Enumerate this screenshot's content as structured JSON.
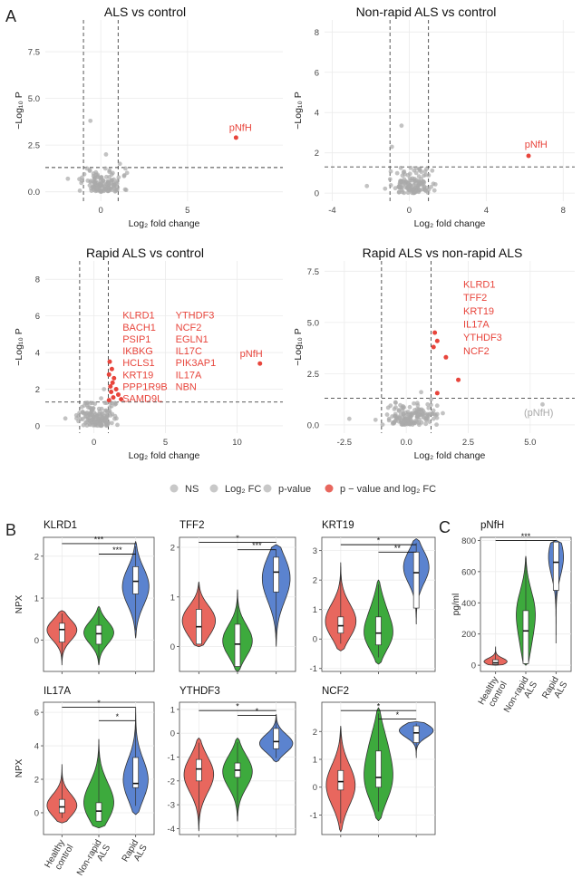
{
  "panel_letters": {
    "a": "A",
    "b": "B",
    "c": "C"
  },
  "colors": {
    "sig": "#e8453c",
    "ns": "#a9a9a9",
    "grid": "#ebebeb",
    "axis": "#333333",
    "healthy": "#e8675e",
    "nonrapid": "#3daa3d",
    "rapid": "#5b83cf"
  },
  "legend": {
    "ns": "NS",
    "log2fc": "Log₂ FC",
    "pvalue": "p-value",
    "both": "p − value and log₂ FC"
  },
  "chart_data": [
    {
      "type": "scatter",
      "id": "volcano-1",
      "title": "ALS vs control",
      "xlabel": "Log₂ fold change",
      "ylabel": "−Log₁₀ P",
      "xlim": [
        -3.2,
        10.5
      ],
      "ylim": [
        -0.5,
        9.2
      ],
      "xticks": [
        0,
        5
      ],
      "yticks": [
        0,
        2.5,
        5.0,
        7.5
      ],
      "ytick_labels": [
        "0.0",
        "2.5",
        "5.0",
        "7.5"
      ],
      "vlines": [
        -1,
        1
      ],
      "hline": 1.3,
      "ns_count": 130,
      "ns_center": [
        0.15,
        0.5
      ],
      "ns_spread": [
        0.55,
        0.45
      ],
      "outliers": [
        [
          -1.9,
          0.7
        ],
        [
          -0.6,
          3.8
        ],
        [
          0.3,
          2.0
        ],
        [
          1.1,
          1.5
        ]
      ],
      "sig_points": [
        {
          "x": 7.8,
          "y": 2.9
        }
      ],
      "labels": [
        {
          "text": "pNfH",
          "x": 7.4,
          "y": 3.25,
          "color": "sig"
        }
      ]
    },
    {
      "type": "scatter",
      "id": "volcano-2",
      "title": "Non-rapid ALS vs control",
      "xlabel": "Log₂ fold change",
      "ylabel": "−Log₁₀ P",
      "xlim": [
        -4.4,
        8.6
      ],
      "ylim": [
        -0.4,
        8.6
      ],
      "xticks": [
        -4,
        0,
        4,
        8
      ],
      "yticks": [
        0,
        2,
        4,
        6,
        8
      ],
      "ytick_labels": [
        "0",
        "2",
        "4",
        "6",
        "8"
      ],
      "vlines": [
        -1,
        1
      ],
      "hline": 1.3,
      "ns_count": 130,
      "ns_center": [
        0.1,
        0.45
      ],
      "ns_spread": [
        0.5,
        0.4
      ],
      "outliers": [
        [
          -2.2,
          0.35
        ],
        [
          -0.9,
          2.3
        ],
        [
          -0.4,
          3.35
        ],
        [
          0.9,
          1.2
        ]
      ],
      "sig_points": [
        {
          "x": 6.2,
          "y": 1.85
        }
      ],
      "labels": [
        {
          "text": "pNfH",
          "x": 6.0,
          "y": 2.25,
          "color": "sig"
        }
      ]
    },
    {
      "type": "scatter",
      "id": "volcano-3",
      "title": "Rapid ALS vs control",
      "xlabel": "Log₂ fold change",
      "ylabel": "−Log₁₀ P",
      "xlim": [
        -3.4,
        13.2
      ],
      "ylim": [
        -0.4,
        9.0
      ],
      "xticks": [
        0,
        5,
        10
      ],
      "yticks": [
        0,
        2,
        4,
        6,
        8
      ],
      "ytick_labels": [
        "0",
        "2",
        "4",
        "6",
        "8"
      ],
      "vlines": [
        -1,
        1
      ],
      "hline": 1.3,
      "ns_count": 150,
      "ns_center": [
        0.2,
        0.5
      ],
      "ns_spread": [
        0.6,
        0.45
      ],
      "outliers": [
        [
          -2.0,
          0.4
        ],
        [
          0.5,
          1.5
        ],
        [
          0.7,
          2.0
        ],
        [
          -0.4,
          1.0
        ]
      ],
      "sig_points": [
        {
          "x": 1.1,
          "y": 3.5
        },
        {
          "x": 1.25,
          "y": 3.1
        },
        {
          "x": 1.05,
          "y": 2.8
        },
        {
          "x": 1.4,
          "y": 2.6
        },
        {
          "x": 1.3,
          "y": 2.35
        },
        {
          "x": 1.15,
          "y": 2.15
        },
        {
          "x": 1.55,
          "y": 2.0
        },
        {
          "x": 1.2,
          "y": 1.85
        },
        {
          "x": 1.7,
          "y": 1.7
        },
        {
          "x": 1.35,
          "y": 1.55
        },
        {
          "x": 1.9,
          "y": 1.45
        },
        {
          "x": 1.05,
          "y": 1.4
        },
        {
          "x": 11.6,
          "y": 3.4
        }
      ],
      "labels": [
        {
          "text": "KLRD1",
          "x": 2.0,
          "y": 5.85,
          "color": "sig"
        },
        {
          "text": "BACH1",
          "x": 2.0,
          "y": 5.2,
          "color": "sig"
        },
        {
          "text": "PSIP1",
          "x": 2.0,
          "y": 4.55,
          "color": "sig"
        },
        {
          "text": "IKBKG",
          "x": 2.0,
          "y": 3.9,
          "color": "sig"
        },
        {
          "text": "HCLS1",
          "x": 2.0,
          "y": 3.25,
          "color": "sig"
        },
        {
          "text": "KRT19",
          "x": 2.0,
          "y": 2.6,
          "color": "sig"
        },
        {
          "text": "PPP1R9B",
          "x": 2.0,
          "y": 1.95,
          "color": "sig"
        },
        {
          "text": "SAMD9L",
          "x": 2.0,
          "y": 1.3,
          "color": "sig"
        },
        {
          "text": "YTHDF3",
          "x": 5.7,
          "y": 5.85,
          "color": "sig"
        },
        {
          "text": "NCF2",
          "x": 5.7,
          "y": 5.2,
          "color": "sig"
        },
        {
          "text": "EGLN1",
          "x": 5.7,
          "y": 4.55,
          "color": "sig"
        },
        {
          "text": "IL17C",
          "x": 5.7,
          "y": 3.9,
          "color": "sig"
        },
        {
          "text": "PIK3AP1",
          "x": 5.7,
          "y": 3.25,
          "color": "sig"
        },
        {
          "text": "IL17A",
          "x": 5.7,
          "y": 2.6,
          "color": "sig"
        },
        {
          "text": "NBN",
          "x": 5.7,
          "y": 1.95,
          "color": "sig"
        },
        {
          "text": "pNfH",
          "x": 10.2,
          "y": 3.75,
          "color": "sig"
        }
      ]
    },
    {
      "type": "scatter",
      "id": "volcano-4",
      "title": "Rapid ALS vs non-rapid ALS",
      "xlabel": "Log₂ fold change",
      "ylabel": "−Log₁₀ P",
      "xlim": [
        -3.3,
        6.8
      ],
      "ylim": [
        -0.4,
        8.0
      ],
      "xticks": [
        -2.5,
        0.0,
        2.5,
        5.0
      ],
      "xtick_labels": [
        "-2.5",
        "0.0",
        "2.5",
        "5.0"
      ],
      "yticks": [
        0,
        2.5,
        5.0,
        7.5
      ],
      "ytick_labels": [
        "0.0",
        "2.5",
        "5.0",
        "7.5"
      ],
      "vlines": [
        -1,
        1
      ],
      "hline": 1.3,
      "ns_count": 150,
      "ns_center": [
        0.15,
        0.5
      ],
      "ns_spread": [
        0.55,
        0.4
      ],
      "outliers": [
        [
          -2.3,
          0.3
        ],
        [
          5.5,
          1.0
        ],
        [
          0.6,
          1.6
        ]
      ],
      "sig_points": [
        {
          "x": 1.15,
          "y": 4.5
        },
        {
          "x": 1.25,
          "y": 4.1
        },
        {
          "x": 1.1,
          "y": 3.8
        },
        {
          "x": 1.6,
          "y": 3.3
        },
        {
          "x": 2.1,
          "y": 2.2
        },
        {
          "x": 1.25,
          "y": 1.55
        }
      ],
      "labels": [
        {
          "text": "KLRD1",
          "x": 2.3,
          "y": 6.7,
          "color": "sig"
        },
        {
          "text": "TFF2",
          "x": 2.3,
          "y": 6.05,
          "color": "sig"
        },
        {
          "text": "KRT19",
          "x": 2.3,
          "y": 5.4,
          "color": "sig"
        },
        {
          "text": "IL17A",
          "x": 2.3,
          "y": 4.75,
          "color": "sig"
        },
        {
          "text": "YTHDF3",
          "x": 2.3,
          "y": 4.1,
          "color": "sig"
        },
        {
          "text": "NCF2",
          "x": 2.3,
          "y": 3.45,
          "color": "sig"
        },
        {
          "text": "(pNfH)",
          "x": 4.75,
          "y": 0.45,
          "color": "ns"
        }
      ]
    },
    {
      "type": "violin",
      "id": "violin-klrd1",
      "title": "KLRD1",
      "ylabel": "NPX",
      "ylim": [
        -0.75,
        2.45
      ],
      "yticks": [
        0,
        1,
        2
      ],
      "ytick_labels": [
        "0",
        "1",
        "2"
      ],
      "groups": [
        {
          "min": -0.6,
          "max": 0.7,
          "q1": -0.05,
          "median": 0.25,
          "q3": 0.4,
          "modes": [
            [
              0.3,
              1
            ]
          ],
          "width": 0.9
        },
        {
          "min": -0.6,
          "max": 0.8,
          "q1": -0.1,
          "median": 0.15,
          "q3": 0.35,
          "modes": [
            [
              0.2,
              1
            ]
          ],
          "width": 0.9
        },
        {
          "min": 0.05,
          "max": 2.35,
          "q1": 1.1,
          "median": 1.4,
          "q3": 1.75,
          "modes": [
            [
              1.3,
              1
            ]
          ],
          "width": 0.8
        }
      ],
      "brackets": [
        {
          "from": 0,
          "to": 2,
          "y": 2.3,
          "label": "***"
        },
        {
          "from": 1,
          "to": 2,
          "y": 2.05,
          "label": "***"
        }
      ]
    },
    {
      "type": "violin",
      "id": "violin-tff2",
      "title": "TFF2",
      "ylabel": "",
      "ylim": [
        -0.5,
        2.2
      ],
      "yticks": [
        0,
        1,
        2
      ],
      "ytick_labels": [
        "0",
        "1",
        "2"
      ],
      "groups": [
        {
          "min": 0.0,
          "max": 1.3,
          "q1": 0.05,
          "median": 0.4,
          "q3": 0.75,
          "modes": [
            [
              0.15,
              0.8
            ],
            [
              0.6,
              1
            ]
          ],
          "width": 0.95
        },
        {
          "min": -0.5,
          "max": 1.15,
          "q1": -0.4,
          "median": 0.05,
          "q3": 0.45,
          "modes": [
            [
              0.05,
              1
            ]
          ],
          "width": 0.85
        },
        {
          "min": 0.0,
          "max": 2.05,
          "q1": 1.1,
          "median": 1.5,
          "q3": 1.8,
          "modes": [
            [
              1.2,
              0.7
            ],
            [
              1.75,
              1
            ]
          ],
          "width": 0.8
        }
      ],
      "brackets": [
        {
          "from": 0,
          "to": 2,
          "y": 2.1,
          "label": "*"
        },
        {
          "from": 1,
          "to": 2,
          "y": 1.95,
          "label": "***"
        }
      ]
    },
    {
      "type": "violin",
      "id": "violin-krt19",
      "title": "KRT19",
      "ylabel": "",
      "ylim": [
        -1.1,
        3.45
      ],
      "yticks": [
        -1,
        0,
        1,
        2,
        3
      ],
      "ytick_labels": [
        "-1",
        "0",
        "1",
        "2",
        "3"
      ],
      "groups": [
        {
          "min": -0.4,
          "max": 2.6,
          "q1": 0.2,
          "median": 0.45,
          "q3": 0.75,
          "modes": [
            [
              0.45,
              1
            ]
          ],
          "width": 0.9
        },
        {
          "min": -0.85,
          "max": 2.0,
          "q1": -0.2,
          "median": 0.2,
          "q3": 0.75,
          "modes": [
            [
              0.0,
              1
            ],
            [
              1.2,
              0.4
            ]
          ],
          "width": 0.85
        },
        {
          "min": 0.5,
          "max": 3.4,
          "q1": 1.05,
          "median": 2.25,
          "q3": 2.95,
          "modes": [
            [
              2.6,
              1
            ]
          ],
          "width": 0.75
        }
      ],
      "brackets": [
        {
          "from": 0,
          "to": 2,
          "y": 3.2,
          "label": "*"
        },
        {
          "from": 1,
          "to": 2,
          "y": 2.95,
          "label": "**"
        }
      ]
    },
    {
      "type": "violin",
      "id": "violin-il17a",
      "title": "IL17A",
      "ylabel": "NPX",
      "ylim": [
        -1.3,
        6.6
      ],
      "yticks": [
        0,
        2,
        4,
        6
      ],
      "ytick_labels": [
        "0",
        "2",
        "4",
        "6"
      ],
      "groups": [
        {
          "min": -0.6,
          "max": 2.9,
          "q1": 0.0,
          "median": 0.35,
          "q3": 0.8,
          "modes": [
            [
              0.2,
              1
            ]
          ],
          "width": 0.9
        },
        {
          "min": -0.9,
          "max": 4.4,
          "q1": -0.5,
          "median": 0.1,
          "q3": 0.6,
          "modes": [
            [
              -0.2,
              1
            ],
            [
              1.2,
              0.4
            ]
          ],
          "width": 0.9
        },
        {
          "min": -0.1,
          "max": 6.3,
          "q1": 1.5,
          "median": 1.75,
          "q3": 3.3,
          "modes": [
            [
              1.6,
              1
            ]
          ],
          "width": 0.75
        }
      ],
      "brackets": [
        {
          "from": 0,
          "to": 2,
          "y": 6.3,
          "label": "*"
        },
        {
          "from": 1,
          "to": 2,
          "y": 5.5,
          "label": "*"
        }
      ]
    },
    {
      "type": "violin",
      "id": "violin-ythdf3",
      "title": "YTHDF3",
      "ylabel": "",
      "ylim": [
        -4.25,
        1.3
      ],
      "yticks": [
        -4,
        -3,
        -2,
        -1,
        0,
        1
      ],
      "ytick_labels": [
        "-4",
        "-3",
        "-2",
        "-1",
        "0",
        "1"
      ],
      "groups": [
        {
          "min": -4.1,
          "max": -0.2,
          "q1": -2.0,
          "median": -1.5,
          "q3": -1.1,
          "modes": [
            [
              -1.6,
              1
            ]
          ],
          "width": 0.85
        },
        {
          "min": -3.7,
          "max": -0.2,
          "q1": -1.85,
          "median": -1.55,
          "q3": -1.25,
          "modes": [
            [
              -1.5,
              1
            ]
          ],
          "width": 0.85
        },
        {
          "min": -1.2,
          "max": 0.8,
          "q1": -0.65,
          "median": -0.35,
          "q3": 0.2,
          "modes": [
            [
              -0.5,
              1
            ]
          ],
          "width": 0.95
        }
      ],
      "brackets": [
        {
          "from": 0,
          "to": 2,
          "y": 0.95,
          "label": "*"
        },
        {
          "from": 1,
          "to": 2,
          "y": 0.75,
          "label": "*"
        }
      ]
    },
    {
      "type": "violin",
      "id": "violin-ncf2",
      "title": "NCF2",
      "ylabel": "",
      "ylim": [
        -1.7,
        3.05
      ],
      "yticks": [
        -1,
        0,
        1,
        2
      ],
      "ytick_labels": [
        "-1",
        "0",
        "1",
        "2"
      ],
      "groups": [
        {
          "min": -1.6,
          "max": 2.2,
          "q1": -0.1,
          "median": 0.2,
          "q3": 0.6,
          "modes": [
            [
              0.0,
              1
            ]
          ],
          "width": 0.85
        },
        {
          "min": -1.2,
          "max": 2.85,
          "q1": 0.0,
          "median": 0.35,
          "q3": 1.3,
          "modes": [
            [
              0.0,
              1
            ],
            [
              1.7,
              0.55
            ]
          ],
          "width": 0.85
        },
        {
          "min": 1.05,
          "max": 2.35,
          "q1": 1.6,
          "median": 1.95,
          "q3": 2.2,
          "modes": [
            [
              2.15,
              1
            ]
          ],
          "width": 1.0
        }
      ],
      "brackets": [
        {
          "from": 0,
          "to": 2,
          "y": 2.75,
          "label": "*"
        },
        {
          "from": 1,
          "to": 2,
          "y": 2.45,
          "label": "*"
        }
      ]
    },
    {
      "type": "violin",
      "id": "violin-pnfh",
      "title": "pNfH",
      "ylabel": "pg/ml",
      "ylim": [
        -40,
        820
      ],
      "yticks": [
        0,
        200,
        400,
        600,
        800
      ],
      "ytick_labels": [
        "0",
        "200",
        "400",
        "600",
        "800"
      ],
      "groups": [
        {
          "min": 0,
          "max": 120,
          "q1": 5,
          "median": 15,
          "q3": 35,
          "modes": [
            [
              10,
              1
            ]
          ],
          "width": 0.85
        },
        {
          "min": 0,
          "max": 700,
          "q1": 10,
          "median": 220,
          "q3": 350,
          "modes": [
            [
              40,
              0.25
            ],
            [
              350,
              0.35
            ]
          ],
          "width": 0.7
        },
        {
          "min": 140,
          "max": 800,
          "q1": 480,
          "median": 660,
          "q3": 790,
          "modes": [
            [
              780,
              1
            ]
          ],
          "width": 0.55
        }
      ],
      "brackets": [
        {
          "from": 0,
          "to": 2,
          "y": 800,
          "label": "***"
        }
      ]
    }
  ],
  "group_labels": {
    "g1": [
      "Healthy",
      "control"
    ],
    "g2": [
      "Non-rapid",
      "ALS"
    ],
    "g3": [
      "Rapid",
      "ALS"
    ]
  }
}
